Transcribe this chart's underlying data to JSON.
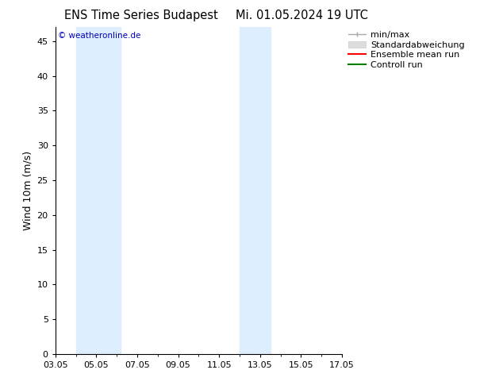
{
  "title_left": "ENS Time Series Budapest",
  "title_right": "Mi. 01.05.2024 19 UTC",
  "ylabel": "Wind 10m (m/s)",
  "watermark": "© weatheronline.de",
  "xlim": [
    0,
    14
  ],
  "ylim": [
    0,
    47
  ],
  "yticks": [
    0,
    5,
    10,
    15,
    20,
    25,
    30,
    35,
    40,
    45
  ],
  "xtick_positions": [
    0,
    2,
    4,
    6,
    8,
    10,
    12,
    14
  ],
  "xtick_labels": [
    "03.05",
    "05.05",
    "07.05",
    "09.05",
    "11.05",
    "13.05",
    "15.05",
    "17.05"
  ],
  "shaded_bands": [
    {
      "x_start": 1.0,
      "x_end": 3.2,
      "color": "#ddeeff"
    },
    {
      "x_start": 9.0,
      "x_end": 10.5,
      "color": "#ddeeff"
    }
  ],
  "legend_items": [
    {
      "label": "min/max"
    },
    {
      "label": "Standardabweichung"
    },
    {
      "label": "Ensemble mean run"
    },
    {
      "label": "Controll run"
    }
  ],
  "background_color": "#ffffff",
  "plot_bg_color": "#ffffff",
  "title_fontsize": 10.5,
  "label_fontsize": 9,
  "tick_fontsize": 8,
  "watermark_color": "#0000bb",
  "legend_fontsize": 8
}
